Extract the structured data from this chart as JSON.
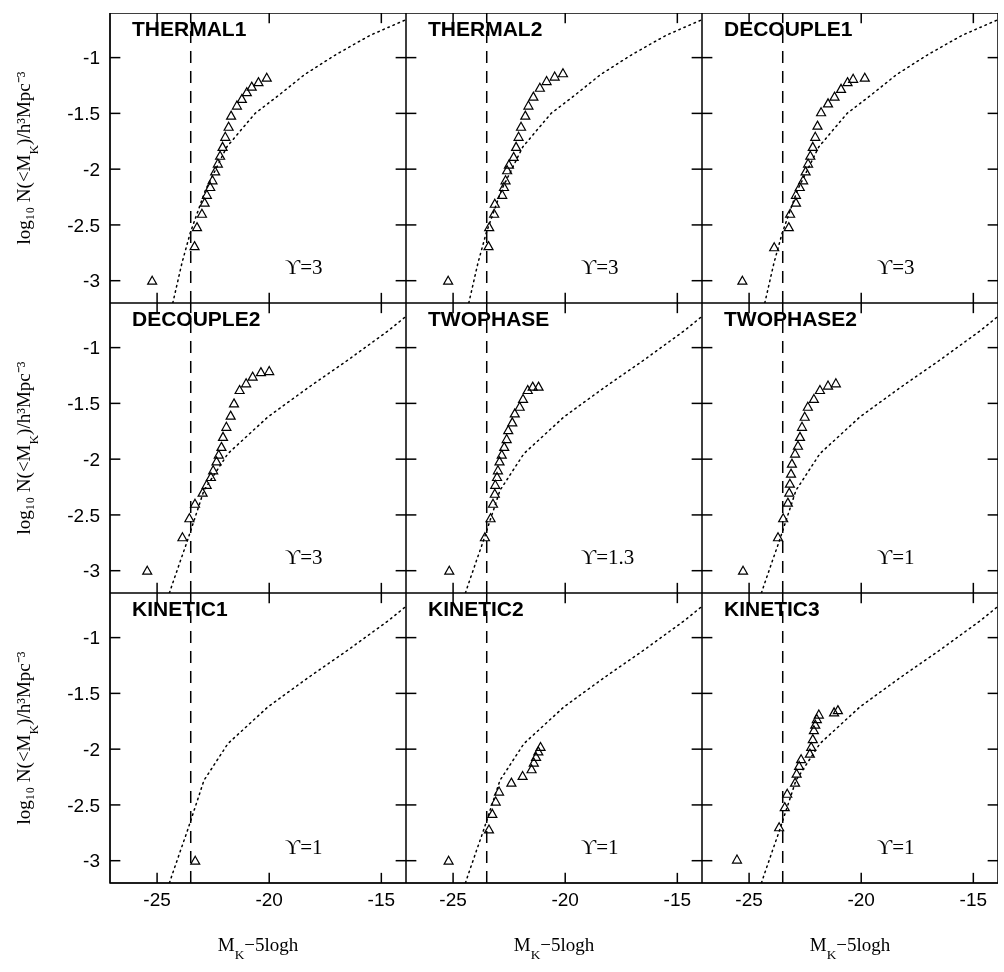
{
  "chart_data": [
    {
      "type": "scatter",
      "title": "THERMAL1",
      "ylabel": "log₁₀ N(<M$_{K}$)/h³Mpc⁻³",
      "xlim": [
        -27.1,
        -13.9
      ],
      "ylim": [
        -3.2,
        -0.6
      ],
      "xticks": [
        -25,
        -20,
        -15
      ],
      "yticks": [
        -3,
        -2.5,
        -2,
        -1.5,
        -1
      ],
      "tick_labels": "y",
      "ref_lines": [
        {
          "axis": "x",
          "value": -23.5,
          "line_style": "dashed",
          "color": "#000000"
        }
      ],
      "annotations": [
        "ϒ=3"
      ],
      "series": [
        {
          "type": "scatter",
          "marker": "triangle",
          "color": "#000000",
          "x": [
            -25.22,
            -23.33,
            -23.22,
            -23.0,
            -22.88,
            -22.78,
            -22.63,
            -22.53,
            -22.41,
            -22.29,
            -22.19,
            -22.08,
            -21.96,
            -21.81,
            -21.7,
            -21.44,
            -21.22,
            -21.0,
            -20.78,
            -20.48,
            -20.11
          ],
          "values": [
            -3.0,
            -2.69,
            -2.52,
            -2.4,
            -2.3,
            -2.23,
            -2.16,
            -2.1,
            -2.02,
            -1.95,
            -1.88,
            -1.8,
            -1.71,
            -1.62,
            -1.52,
            -1.43,
            -1.37,
            -1.31,
            -1.26,
            -1.22,
            -1.18
          ]
        },
        {
          "type": "line",
          "line_style": "dotted",
          "marker": "none",
          "color": "#000000",
          "x": [
            -24.3,
            -23.89,
            -23.52,
            -22.85,
            -21.89,
            -20.63,
            -19.59,
            -18.41,
            -17.0,
            -15.5,
            -13.9
          ],
          "values": [
            -3.2,
            -2.84,
            -2.57,
            -2.19,
            -1.8,
            -1.5,
            -1.34,
            -1.15,
            -0.97,
            -0.8,
            -0.66
          ]
        }
      ]
    },
    {
      "type": "scatter",
      "title": "THERMAL2",
      "xlim": [
        -27.1,
        -13.9
      ],
      "ylim": [
        -3.2,
        -0.6
      ],
      "xticks": [
        -25,
        -20,
        -15
      ],
      "yticks": [
        -3,
        -2.5,
        -2,
        -1.5,
        -1
      ],
      "tick_labels": false,
      "ref_lines": [
        {
          "axis": "x",
          "value": -23.5,
          "line_style": "dashed",
          "color": "#000000"
        }
      ],
      "annotations": [
        "ϒ=3"
      ],
      "series": [
        {
          "type": "scatter",
          "marker": "triangle",
          "color": "#000000",
          "x": [
            -25.22,
            -23.42,
            -23.39,
            -23.17,
            -23.14,
            -22.81,
            -22.73,
            -22.66,
            -22.59,
            -22.51,
            -22.3,
            -22.19,
            -22.08,
            -21.97,
            -21.78,
            -21.64,
            -21.42,
            -21.13,
            -20.83,
            -20.47,
            -20.1
          ],
          "values": [
            -3.0,
            -2.69,
            -2.52,
            -2.4,
            -2.31,
            -2.23,
            -2.16,
            -2.1,
            -2.01,
            -1.96,
            -1.89,
            -1.8,
            -1.71,
            -1.62,
            -1.52,
            -1.43,
            -1.35,
            -1.27,
            -1.21,
            -1.17,
            -1.14
          ]
        },
        {
          "type": "line",
          "line_style": "dotted",
          "marker": "none",
          "color": "#000000",
          "x": [
            -24.3,
            -23.89,
            -23.52,
            -22.85,
            -21.89,
            -20.63,
            -19.59,
            -18.41,
            -17.0,
            -15.5,
            -13.9
          ],
          "values": [
            -3.2,
            -2.84,
            -2.57,
            -2.19,
            -1.8,
            -1.5,
            -1.34,
            -1.15,
            -0.97,
            -0.8,
            -0.66
          ]
        }
      ]
    },
    {
      "type": "scatter",
      "title": "DECOUPLE1",
      "xlim": [
        -27.1,
        -13.9
      ],
      "ylim": [
        -3.2,
        -0.6
      ],
      "xticks": [
        -25,
        -20,
        -15
      ],
      "yticks": [
        -3,
        -2.5,
        -2,
        -1.5,
        -1
      ],
      "tick_labels": false,
      "ref_lines": [
        {
          "axis": "x",
          "value": -23.5,
          "line_style": "dashed",
          "color": "#000000"
        }
      ],
      "annotations": [
        "ϒ=3"
      ],
      "series": [
        {
          "type": "scatter",
          "marker": "triangle",
          "color": "#000000",
          "x": [
            -25.3,
            -23.88,
            -23.23,
            -23.17,
            -22.91,
            -22.91,
            -22.74,
            -22.59,
            -22.48,
            -22.37,
            -22.27,
            -22.16,
            -22.05,
            -21.95,
            -21.79,
            -21.48,
            -21.19,
            -20.9,
            -20.61,
            -20.36,
            -19.84
          ],
          "values": [
            -3.0,
            -2.7,
            -2.52,
            -2.4,
            -2.3,
            -2.23,
            -2.16,
            -2.1,
            -2.02,
            -1.95,
            -1.88,
            -1.8,
            -1.71,
            -1.61,
            -1.49,
            -1.41,
            -1.35,
            -1.28,
            -1.22,
            -1.19,
            -1.18
          ]
        },
        {
          "type": "line",
          "line_style": "dotted",
          "marker": "none",
          "color": "#000000",
          "x": [
            -24.3,
            -23.89,
            -23.52,
            -22.85,
            -21.89,
            -20.63,
            -19.59,
            -18.41,
            -17.0,
            -15.5,
            -13.9
          ],
          "values": [
            -3.2,
            -2.84,
            -2.57,
            -2.19,
            -1.8,
            -1.5,
            -1.34,
            -1.15,
            -0.97,
            -0.8,
            -0.66
          ]
        }
      ]
    },
    {
      "type": "scatter",
      "title": "DECOUPLE2",
      "ylabel": "log₁₀ N(<M$_{K}$)/h³Mpc⁻³",
      "xlim": [
        -27.1,
        -13.9
      ],
      "ylim": [
        -3.2,
        -0.6
      ],
      "xticks": [
        -25,
        -20,
        -15
      ],
      "yticks": [
        -3,
        -2.5,
        -2,
        -1.5,
        -1
      ],
      "tick_labels": "y",
      "ref_lines": [
        {
          "axis": "x",
          "value": -23.5,
          "line_style": "dashed",
          "color": "#000000"
        }
      ],
      "annotations": [
        "ϒ=3"
      ],
      "series": [
        {
          "type": "scatter",
          "marker": "triangle",
          "color": "#000000",
          "x": [
            -25.44,
            -23.87,
            -23.56,
            -23.31,
            -22.97,
            -22.79,
            -22.6,
            -22.5,
            -22.35,
            -22.25,
            -22.13,
            -22.06,
            -21.91,
            -21.72,
            -21.57,
            -21.32,
            -21.03,
            -20.74,
            -20.37,
            -20.0
          ],
          "values": [
            -3.0,
            -2.7,
            -2.53,
            -2.4,
            -2.3,
            -2.23,
            -2.16,
            -2.1,
            -2.02,
            -1.96,
            -1.89,
            -1.8,
            -1.71,
            -1.61,
            -1.5,
            -1.38,
            -1.32,
            -1.26,
            -1.22,
            -1.21
          ]
        },
        {
          "type": "line",
          "line_style": "dotted",
          "marker": "none",
          "color": "#000000",
          "x": [
            -24.45,
            -24.25,
            -23.63,
            -22.91,
            -21.84,
            -20.05,
            -18.27,
            -16.48,
            -14.7,
            -13.9
          ],
          "values": [
            -3.2,
            -3.08,
            -2.72,
            -2.28,
            -1.95,
            -1.62,
            -1.36,
            -1.11,
            -0.85,
            -0.72
          ]
        }
      ]
    },
    {
      "type": "scatter",
      "title": "TWOPHASE",
      "xlim": [
        -27.1,
        -13.9
      ],
      "ylim": [
        -3.2,
        -0.6
      ],
      "xticks": [
        -25,
        -20,
        -15
      ],
      "yticks": [
        -3,
        -2.5,
        -2,
        -1.5,
        -1
      ],
      "tick_labels": false,
      "ref_lines": [
        {
          "axis": "x",
          "value": -23.5,
          "line_style": "dashed",
          "color": "#000000"
        }
      ],
      "annotations": [
        "ϒ=1.3"
      ],
      "series": [
        {
          "type": "scatter",
          "marker": "triangle",
          "color": "#000000",
          "x": [
            -25.17,
            -23.58,
            -23.33,
            -23.22,
            -23.14,
            -23.12,
            -23.04,
            -23.0,
            -22.93,
            -22.83,
            -22.72,
            -22.61,
            -22.54,
            -22.36,
            -22.25,
            -22.03,
            -21.88,
            -21.67,
            -21.45,
            -21.19
          ],
          "values": [
            -3.0,
            -2.7,
            -2.53,
            -2.4,
            -2.31,
            -2.23,
            -2.16,
            -2.1,
            -2.02,
            -1.96,
            -1.89,
            -1.82,
            -1.74,
            -1.67,
            -1.59,
            -1.53,
            -1.46,
            -1.38,
            -1.35,
            -1.35
          ]
        },
        {
          "type": "line",
          "line_style": "dotted",
          "marker": "none",
          "color": "#000000",
          "x": [
            -24.45,
            -24.25,
            -23.63,
            -22.91,
            -21.84,
            -20.05,
            -18.27,
            -16.48,
            -14.7,
            -13.9
          ],
          "values": [
            -3.2,
            -3.08,
            -2.72,
            -2.28,
            -1.95,
            -1.62,
            -1.36,
            -1.11,
            -0.85,
            -0.72
          ]
        }
      ]
    },
    {
      "type": "scatter",
      "title": "TWOPHASE2",
      "xlim": [
        -27.1,
        -13.9
      ],
      "ylim": [
        -3.2,
        -0.6
      ],
      "xticks": [
        -25,
        -20,
        -15
      ],
      "yticks": [
        -3,
        -2.5,
        -2,
        -1.5,
        -1
      ],
      "tick_labels": false,
      "ref_lines": [
        {
          "axis": "x",
          "value": -23.5,
          "line_style": "dashed",
          "color": "#000000"
        }
      ],
      "annotations": [
        "ϒ=1"
      ],
      "series": [
        {
          "type": "scatter",
          "marker": "triangle",
          "color": "#000000",
          "x": [
            -25.27,
            -23.71,
            -23.48,
            -23.27,
            -23.21,
            -23.18,
            -23.13,
            -23.09,
            -22.95,
            -22.82,
            -22.73,
            -22.64,
            -22.52,
            -22.38,
            -22.11,
            -21.84,
            -21.48,
            -21.13
          ],
          "values": [
            -3.0,
            -2.7,
            -2.53,
            -2.39,
            -2.3,
            -2.22,
            -2.13,
            -2.04,
            -1.95,
            -1.88,
            -1.8,
            -1.71,
            -1.62,
            -1.53,
            -1.46,
            -1.38,
            -1.34,
            -1.32
          ]
        },
        {
          "type": "line",
          "line_style": "dotted",
          "marker": "none",
          "color": "#000000",
          "x": [
            -24.45,
            -24.25,
            -23.63,
            -22.91,
            -21.84,
            -20.05,
            -18.27,
            -16.48,
            -14.7,
            -13.9
          ],
          "values": [
            -3.2,
            -3.08,
            -2.72,
            -2.28,
            -1.95,
            -1.62,
            -1.36,
            -1.11,
            -0.85,
            -0.72
          ]
        }
      ]
    },
    {
      "type": "scatter",
      "title": "KINETIC1",
      "ylabel": "log₁₀ N(<M$_{K}$)/h³Mpc⁻³",
      "xlabel": "M$_{K}$−5logh",
      "xlim": [
        -27.1,
        -13.9
      ],
      "ylim": [
        -3.2,
        -0.6
      ],
      "xticks": [
        -25,
        -20,
        -15
      ],
      "yticks": [
        -3,
        -2.5,
        -2,
        -1.5,
        -1
      ],
      "ref_lines": [
        {
          "axis": "x",
          "value": -23.5,
          "line_style": "dashed",
          "color": "#000000"
        }
      ],
      "annotations": [
        "ϒ=1"
      ],
      "series": [
        {
          "type": "scatter",
          "marker": "triangle",
          "color": "#000000",
          "x": [
            -23.3
          ],
          "values": [
            -3.0
          ]
        },
        {
          "type": "line",
          "line_style": "dotted",
          "marker": "none",
          "color": "#000000",
          "x": [
            -24.45,
            -24.25,
            -23.63,
            -22.91,
            -21.84,
            -20.05,
            -18.27,
            -16.48,
            -14.7,
            -13.9
          ],
          "values": [
            -3.2,
            -3.08,
            -2.72,
            -2.28,
            -1.95,
            -1.62,
            -1.36,
            -1.11,
            -0.85,
            -0.72
          ]
        }
      ]
    },
    {
      "type": "scatter",
      "title": "KINETIC2",
      "xlabel": "M$_{K}$−5logh",
      "xlim": [
        -27.1,
        -13.9
      ],
      "ylim": [
        -3.2,
        -0.6
      ],
      "xticks": [
        -25,
        -20,
        -15
      ],
      "yticks": [
        -3,
        -2.5,
        -2,
        -1.5,
        -1
      ],
      "tick_labels": "x",
      "ref_lines": [
        {
          "axis": "x",
          "value": -23.5,
          "line_style": "dashed",
          "color": "#000000"
        }
      ],
      "annotations": [
        "ϒ=1"
      ],
      "series": [
        {
          "type": "scatter",
          "marker": "triangle",
          "color": "#000000",
          "x": [
            -25.2,
            -23.4,
            -23.25,
            -23.1,
            -22.95,
            -22.4,
            -21.9,
            -21.5,
            -21.4,
            -21.3,
            -21.2,
            -21.1
          ],
          "values": [
            -3.0,
            -2.72,
            -2.58,
            -2.47,
            -2.38,
            -2.3,
            -2.24,
            -2.18,
            -2.12,
            -2.07,
            -2.02,
            -1.98
          ]
        },
        {
          "type": "line",
          "line_style": "dotted",
          "marker": "none",
          "color": "#000000",
          "x": [
            -24.45,
            -24.25,
            -23.63,
            -22.91,
            -21.84,
            -20.05,
            -18.27,
            -16.48,
            -14.7,
            -13.9
          ],
          "values": [
            -3.2,
            -3.08,
            -2.72,
            -2.28,
            -1.95,
            -1.62,
            -1.36,
            -1.11,
            -0.85,
            -0.72
          ]
        }
      ]
    },
    {
      "type": "scatter",
      "title": "KINETIC3",
      "xlabel": "M$_{K}$−5logh",
      "xlim": [
        -27.1,
        -13.9
      ],
      "ylim": [
        -3.2,
        -0.6
      ],
      "xticks": [
        -25,
        -20,
        -15
      ],
      "yticks": [
        -3,
        -2.5,
        -2,
        -1.5,
        -1
      ],
      "tick_labels": "x",
      "ref_lines": [
        {
          "axis": "x",
          "value": -23.5,
          "line_style": "dashed",
          "color": "#000000"
        }
      ],
      "annotations": [
        "ϒ=1"
      ],
      "series": [
        {
          "type": "scatter",
          "marker": "triangle",
          "color": "#000000",
          "x": [
            -25.54,
            -23.66,
            -23.41,
            -23.3,
            -22.95,
            -22.88,
            -22.77,
            -22.68,
            -22.29,
            -22.23,
            -22.16,
            -22.11,
            -22.05,
            -21.98,
            -21.89,
            -21.21,
            -21.04
          ],
          "values": [
            -2.99,
            -2.7,
            -2.52,
            -2.4,
            -2.3,
            -2.22,
            -2.15,
            -2.09,
            -2.04,
            -1.98,
            -1.91,
            -1.83,
            -1.78,
            -1.73,
            -1.69,
            -1.67,
            -1.65
          ]
        },
        {
          "type": "line",
          "line_style": "dotted",
          "marker": "none",
          "color": "#000000",
          "x": [
            -24.45,
            -24.25,
            -23.63,
            -22.91,
            -21.84,
            -20.05,
            -18.27,
            -16.48,
            -14.7,
            -13.9
          ],
          "values": [
            -3.2,
            -3.08,
            -2.72,
            -2.28,
            -1.95,
            -1.62,
            -1.36,
            -1.11,
            -0.85,
            -0.72
          ]
        }
      ]
    }
  ]
}
